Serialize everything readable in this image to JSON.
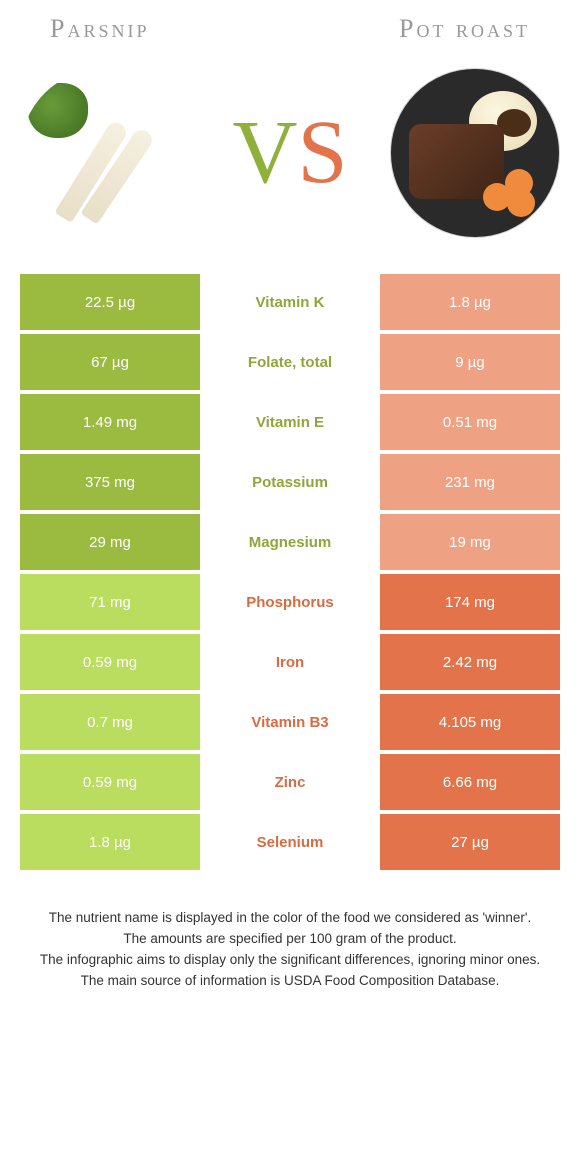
{
  "titles": {
    "left": "Parsnip",
    "right": "Pot roast"
  },
  "vs": {
    "v": "V",
    "s": "S"
  },
  "colors": {
    "left_winner": "#9bbb40",
    "left_loser": "#badd5f",
    "right_winner": "#e2734a",
    "right_loser": "#efa183",
    "mid_green": "#8fa63a",
    "mid_orange": "#d96b42"
  },
  "rows": [
    {
      "nutrient": "Vitamin K",
      "left": "22.5 µg",
      "right": "1.8 µg",
      "winner": "left"
    },
    {
      "nutrient": "Folate, total",
      "left": "67 µg",
      "right": "9 µg",
      "winner": "left"
    },
    {
      "nutrient": "Vitamin E",
      "left": "1.49 mg",
      "right": "0.51 mg",
      "winner": "left"
    },
    {
      "nutrient": "Potassium",
      "left": "375 mg",
      "right": "231 mg",
      "winner": "left"
    },
    {
      "nutrient": "Magnesium",
      "left": "29 mg",
      "right": "19 mg",
      "winner": "left"
    },
    {
      "nutrient": "Phosphorus",
      "left": "71 mg",
      "right": "174 mg",
      "winner": "right"
    },
    {
      "nutrient": "Iron",
      "left": "0.59 mg",
      "right": "2.42 mg",
      "winner": "right"
    },
    {
      "nutrient": "Vitamin B3",
      "left": "0.7 mg",
      "right": "4.105 mg",
      "winner": "right"
    },
    {
      "nutrient": "Zinc",
      "left": "0.59 mg",
      "right": "6.66 mg",
      "winner": "right"
    },
    {
      "nutrient": "Selenium",
      "left": "1.8 µg",
      "right": "27 µg",
      "winner": "right"
    }
  ],
  "footnotes": [
    "The nutrient name is displayed in the color of the food we considered as 'winner'.",
    "The amounts are specified per 100 gram of the product.",
    "The infographic aims to display only the significant differences, ignoring minor ones.",
    "The main source of information is USDA Food Composition Database."
  ]
}
